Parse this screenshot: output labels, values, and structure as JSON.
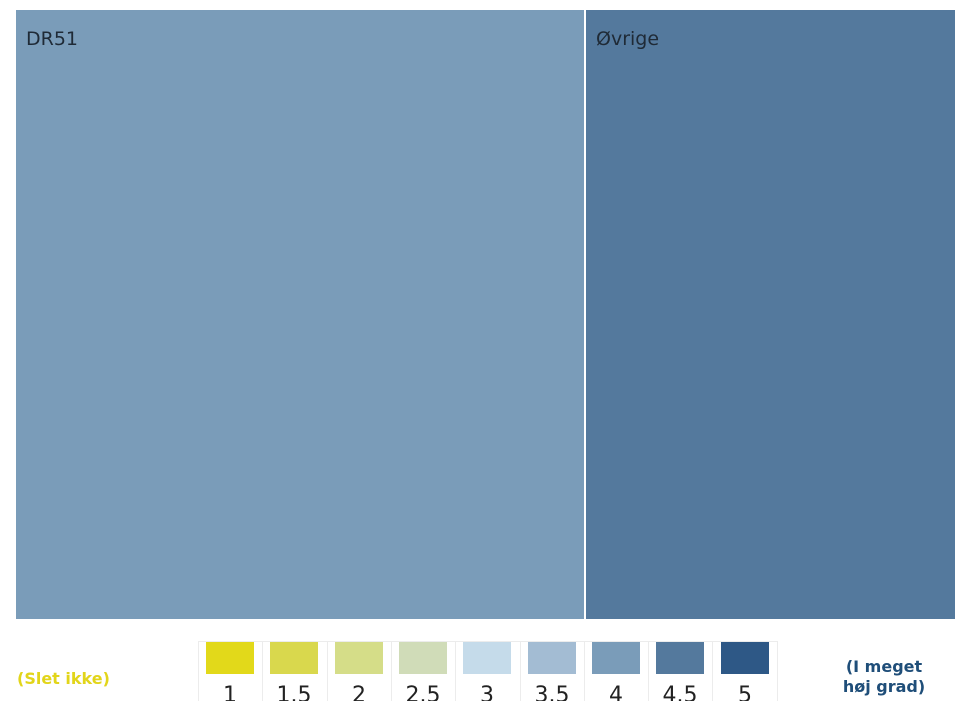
{
  "chart_data": {
    "type": "treemap",
    "title": "",
    "items": [
      {
        "name": "DR51",
        "size_share": 0.607,
        "color_value": 4,
        "color": "#7a9cb9"
      },
      {
        "name": "Øvrige",
        "size_share": 0.393,
        "color_value": 4.5,
        "color": "#54799d"
      }
    ],
    "color_scale": {
      "ticks": [
        "1",
        "1.5",
        "2",
        "2.5",
        "3",
        "3.5",
        "4",
        "4.5",
        "5"
      ],
      "colors": [
        "#e2d91a",
        "#d9d84d",
        "#d5dd88",
        "#d0dcb8",
        "#c5dbea",
        "#a3bcd3",
        "#7a9cb9",
        "#54799d",
        "#2e5886"
      ],
      "low_label": "(Slet ikke)",
      "high_label_line1": "(I meget",
      "high_label_line2": "høj grad)"
    }
  }
}
